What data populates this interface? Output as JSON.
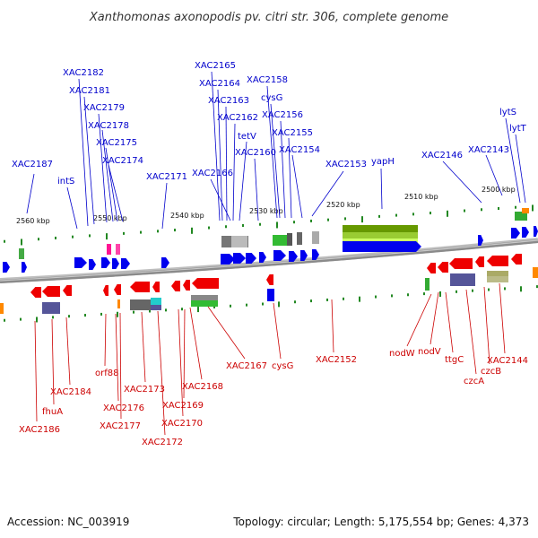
{
  "title": "Xanthomonas axonopodis pv. citri str. 306, complete genome",
  "footer": {
    "accession": "Accession: NC_003919",
    "summary": "Topology: circular; Length: 5,175,554 bp; Genes: 4,373"
  },
  "colors": {
    "forward": "#0000ee",
    "reverse": "#ee0000",
    "backbone": "#888888",
    "tick": "#228822",
    "top_label": "#0000cc",
    "bottom_label": "#cc0000"
  },
  "scale_ticks": [
    "2560 kbp",
    "2550 kbp",
    "2540 kbp",
    "2530 kbp",
    "2520 kbp",
    "2510 kbp",
    "2500 kbp"
  ],
  "top_labels": [
    "XAC2187",
    "intS",
    "XAC2182",
    "XAC2181",
    "XAC2179",
    "XAC2178",
    "XAC2175",
    "XAC2174",
    "XAC2171",
    "XAC2166",
    "XAC2165",
    "XAC2164",
    "XAC2163",
    "XAC2162",
    "tetV",
    "XAC2160",
    "XAC2158",
    "cysG",
    "XAC2156",
    "XAC2155",
    "XAC2154",
    "XAC2153",
    "yapH",
    "XAC2146",
    "XAC2143",
    "lytS",
    "lytT"
  ],
  "bottom_labels": [
    "XAC2186",
    "fhuA",
    "XAC2184",
    "orf88",
    "XAC2176",
    "XAC2177",
    "XAC2173",
    "XAC2172",
    "XAC2170",
    "XAC2169",
    "XAC2168",
    "XAC2167",
    "cysG",
    "XAC2152",
    "nodW",
    "nodV",
    "ttgC",
    "czcA",
    "czcB",
    "XAC2144"
  ]
}
